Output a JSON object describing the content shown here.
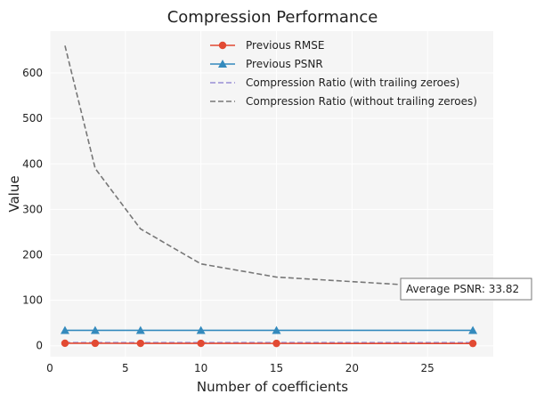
{
  "chart_data": {
    "type": "line",
    "title": "Compression Performance",
    "xlabel": "Number of coefficients",
    "ylabel": "Value",
    "xlim": [
      0,
      29.35
    ],
    "ylim": [
      -24,
      692
    ],
    "x_ticks": [
      0,
      5,
      10,
      15,
      20,
      25
    ],
    "y_ticks": [
      0,
      100,
      200,
      300,
      400,
      500,
      600
    ],
    "grid": true,
    "legend_position": "top-center",
    "x": [
      1,
      3,
      6,
      10,
      15,
      28
    ],
    "series": [
      {
        "name": "Previous RMSE",
        "style": "solid",
        "marker": "circle",
        "color": "#e24a33",
        "values": [
          5.5,
          5.4,
          5.3,
          5.2,
          5.1,
          5.0
        ]
      },
      {
        "name": "Previous PSNR",
        "style": "solid",
        "marker": "triangle",
        "color": "#348abd",
        "values": [
          33.8,
          33.8,
          33.8,
          33.8,
          33.8,
          33.8
        ]
      },
      {
        "name": "Compression Ratio (with trailing zeroes)",
        "style": "dashed",
        "marker": "none",
        "color": "#988ed5",
        "values": [
          7,
          7,
          7,
          7,
          7,
          7
        ]
      },
      {
        "name": "Compression Ratio (without trailing zeroes)",
        "style": "dashed",
        "marker": "none",
        "color": "#777777",
        "values": [
          660,
          390,
          257,
          180,
          151,
          125
        ]
      }
    ],
    "annotation": {
      "text": "Average PSNR: 33.82"
    }
  }
}
